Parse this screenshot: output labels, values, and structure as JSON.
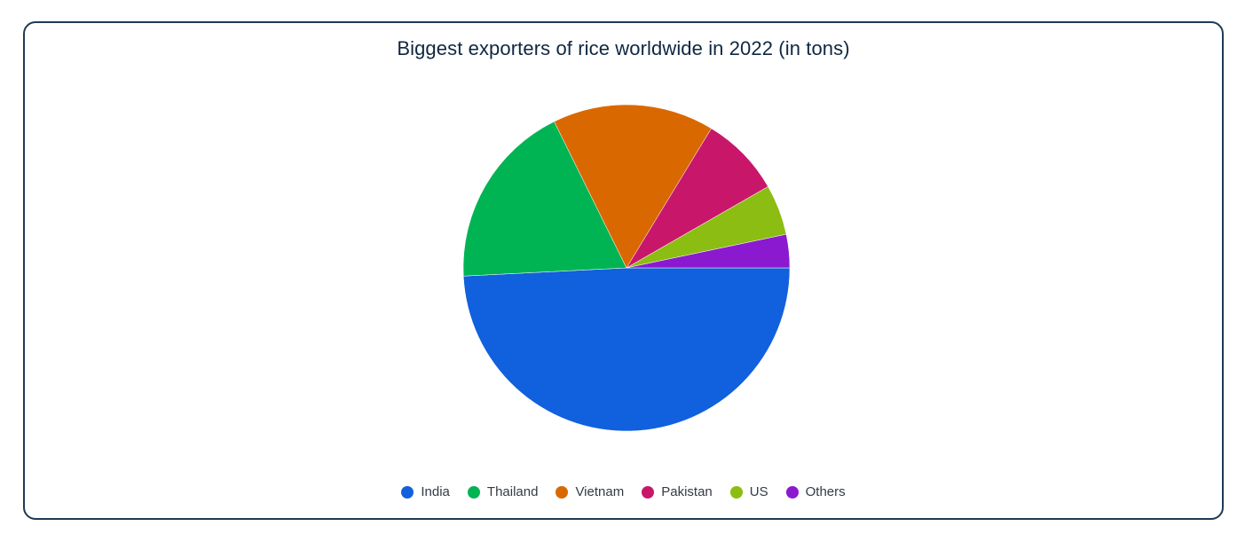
{
  "chart_data": {
    "type": "pie",
    "title": "Biggest exporters of rice worldwide in 2022 (in tons)",
    "categories": [
      "India",
      "Thailand",
      "Vietnam",
      "Pakistan",
      "US",
      "Others"
    ],
    "values": [
      49.2,
      18.5,
      16.0,
      8.0,
      5.0,
      3.3
    ],
    "colors": [
      "#1160dd",
      "#00b454",
      "#da6800",
      "#c8176b",
      "#8cbd12",
      "#8b19cf"
    ],
    "legend_position": "bottom"
  }
}
